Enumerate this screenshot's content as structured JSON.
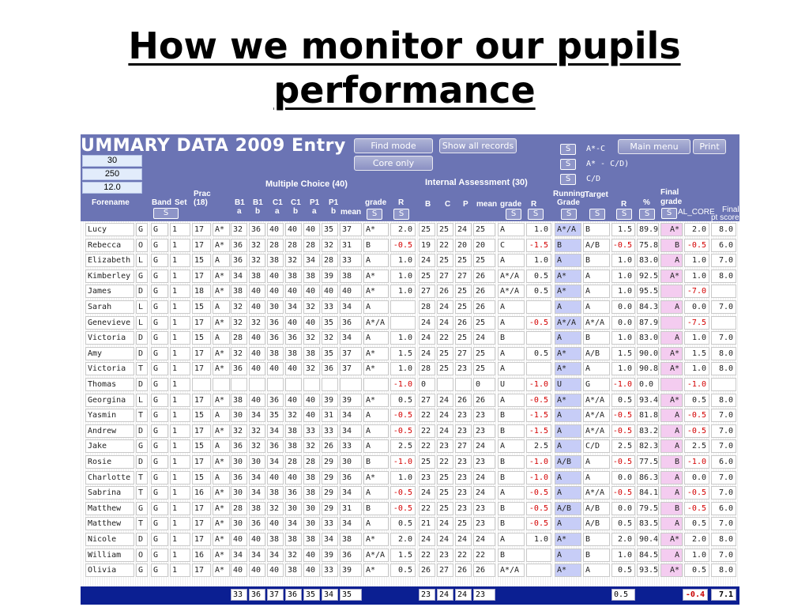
{
  "slide": {
    "title_line1": "How we monitor our pupils",
    "title_line2": "performance"
  },
  "app": {
    "title": "UMMARY DATA 2009 Entry",
    "buttons": {
      "find_mode": "Find mode",
      "show_all": "Show all records",
      "core_only": "Core only",
      "main_menu": "Main menu",
      "print": "Print"
    },
    "s_label": "S",
    "legend": [
      "A*-C",
      "A* - C/D)",
      "C/D"
    ],
    "params": [
      "30",
      "250",
      "12.0"
    ],
    "headers": {
      "forename": "Forename",
      "band": "Band",
      "set": "Set",
      "prac": "Prac",
      "prac18": "(18)",
      "mc_group": "Multiple Choice (40)",
      "b1a": [
        "B1",
        "a"
      ],
      "b1b": [
        "B1",
        "b"
      ],
      "c1a": [
        "C1",
        "a"
      ],
      "c1b": [
        "C1",
        "b"
      ],
      "p1a": [
        "P1",
        "a"
      ],
      "p1b": [
        "P1",
        "b"
      ],
      "mean": "mean",
      "grade": "grade",
      "r": "R",
      "ia_group": "Internal Assessment (30)",
      "b": "B",
      "c": "C",
      "p": "P",
      "ia_mean": "mean",
      "ia_grade": "grade",
      "ia_r": "R",
      "running": "Running",
      "running_grade": "Grade",
      "target": "Target",
      "r2": "R",
      "pct": "%",
      "final": "Final",
      "final_grade": "grade",
      "fal_core": "AL_CORE",
      "final_pt": "Final",
      "final_pt2": "pt score"
    },
    "rows": [
      {
        "name": "Lucy",
        "band": "G",
        "set": "G",
        "s2": "1",
        "prac": "17",
        "pg": "A*",
        "mc": [
          "32",
          "36",
          "40",
          "40",
          "40",
          "35"
        ],
        "mean": "37",
        "grade": "A*",
        "r": "2.0",
        "ia": [
          "25",
          "25",
          "24"
        ],
        "iam": "25",
        "iag": "A",
        "iar": "1.0",
        "run": "A*/A",
        "tgt": "B",
        "r2": "1.5",
        "pct": "89.9",
        "fg": "A*",
        "core": "2.0",
        "pt": "8.0"
      },
      {
        "name": "Rebecca",
        "band": "O",
        "set": "G",
        "s2": "1",
        "prac": "17",
        "pg": "A*",
        "mc": [
          "36",
          "32",
          "28",
          "28",
          "28",
          "32"
        ],
        "mean": "31",
        "grade": "B",
        "r": "-0.5",
        "ia": [
          "19",
          "22",
          "20"
        ],
        "iam": "20",
        "iag": "C",
        "iar": "-1.5",
        "run": "B",
        "tgt": "A/B",
        "r2": "-0.5",
        "pct": "75.8",
        "fg": "B",
        "core": "-0.5",
        "pt": "6.0"
      },
      {
        "name": "Elizabeth",
        "band": "L",
        "set": "G",
        "s2": "1",
        "prac": "15",
        "pg": "A",
        "mc": [
          "36",
          "32",
          "38",
          "32",
          "34",
          "28"
        ],
        "mean": "33",
        "grade": "A",
        "r": "1.0",
        "ia": [
          "24",
          "25",
          "25"
        ],
        "iam": "25",
        "iag": "A",
        "iar": "1.0",
        "run": "A",
        "tgt": "B",
        "r2": "1.0",
        "pct": "83.0",
        "fg": "A",
        "core": "1.0",
        "pt": "7.0"
      },
      {
        "name": "Kimberley",
        "band": "G",
        "set": "G",
        "s2": "1",
        "prac": "17",
        "pg": "A*",
        "mc": [
          "34",
          "38",
          "40",
          "38",
          "38",
          "39"
        ],
        "mean": "38",
        "grade": "A*",
        "r": "1.0",
        "ia": [
          "25",
          "27",
          "27"
        ],
        "iam": "26",
        "iag": "A*/A",
        "iar": "0.5",
        "run": "A*",
        "tgt": "A",
        "r2": "1.0",
        "pct": "92.5",
        "fg": "A*",
        "core": "1.0",
        "pt": "8.0"
      },
      {
        "name": "James",
        "band": "D",
        "set": "G",
        "s2": "1",
        "prac": "18",
        "pg": "A*",
        "mc": [
          "38",
          "40",
          "40",
          "40",
          "40",
          "40"
        ],
        "mean": "40",
        "grade": "A*",
        "r": "1.0",
        "ia": [
          "27",
          "26",
          "25"
        ],
        "iam": "26",
        "iag": "A*/A",
        "iar": "0.5",
        "run": "A*",
        "tgt": "A",
        "r2": "1.0",
        "pct": "95.5",
        "fg": "",
        "core": "-7.0",
        "pt": ""
      },
      {
        "name": "Sarah",
        "band": "L",
        "set": "G",
        "s2": "1",
        "prac": "15",
        "pg": "A",
        "mc": [
          "32",
          "40",
          "30",
          "34",
          "32",
          "33"
        ],
        "mean": "34",
        "grade": "A",
        "r": "",
        "ia": [
          "28",
          "24",
          "25"
        ],
        "iam": "26",
        "iag": "A",
        "iar": "",
        "run": "A",
        "tgt": "A",
        "r2": "0.0",
        "pct": "84.3",
        "fg": "A",
        "core": "0.0",
        "pt": "7.0"
      },
      {
        "name": "Genevieve",
        "band": "L",
        "set": "G",
        "s2": "1",
        "prac": "17",
        "pg": "A*",
        "mc": [
          "32",
          "32",
          "36",
          "40",
          "40",
          "35"
        ],
        "mean": "36",
        "grade": "A*/A",
        "r": "",
        "ia": [
          "24",
          "24",
          "26"
        ],
        "iam": "25",
        "iag": "A",
        "iar": "-0.5",
        "run": "A*/A",
        "tgt": "A*/A",
        "r2": "0.0",
        "pct": "87.9",
        "fg": "",
        "core": "-7.5",
        "pt": ""
      },
      {
        "name": "Victoria",
        "band": "D",
        "set": "G",
        "s2": "1",
        "prac": "15",
        "pg": "A",
        "mc": [
          "28",
          "40",
          "36",
          "36",
          "32",
          "32"
        ],
        "mean": "34",
        "grade": "A",
        "r": "1.0",
        "ia": [
          "24",
          "22",
          "25"
        ],
        "iam": "24",
        "iag": "B",
        "iar": "",
        "run": "A",
        "tgt": "B",
        "r2": "1.0",
        "pct": "83.0",
        "fg": "A",
        "core": "1.0",
        "pt": "7.0"
      },
      {
        "name": "Amy",
        "band": "D",
        "set": "G",
        "s2": "1",
        "prac": "17",
        "pg": "A*",
        "mc": [
          "32",
          "40",
          "38",
          "38",
          "38",
          "35"
        ],
        "mean": "37",
        "grade": "A*",
        "r": "1.5",
        "ia": [
          "24",
          "25",
          "27"
        ],
        "iam": "25",
        "iag": "A",
        "iar": "0.5",
        "run": "A*",
        "tgt": "A/B",
        "r2": "1.5",
        "pct": "90.0",
        "fg": "A*",
        "core": "1.5",
        "pt": "8.0"
      },
      {
        "name": "Victoria",
        "band": "T",
        "set": "G",
        "s2": "1",
        "prac": "17",
        "pg": "A*",
        "mc": [
          "36",
          "40",
          "40",
          "40",
          "32",
          "36"
        ],
        "mean": "37",
        "grade": "A*",
        "r": "1.0",
        "ia": [
          "28",
          "25",
          "23"
        ],
        "iam": "25",
        "iag": "A",
        "iar": "",
        "run": "A*",
        "tgt": "A",
        "r2": "1.0",
        "pct": "90.8",
        "fg": "A*",
        "core": "1.0",
        "pt": "8.0"
      },
      {
        "name": "Thomas",
        "band": "D",
        "set": "G",
        "s2": "1",
        "prac": "",
        "pg": "",
        "mc": [
          "",
          "",
          "",
          "",
          "",
          ""
        ],
        "mean": "",
        "grade": "",
        "r": "-1.0",
        "ia": [
          "0",
          "",
          ""
        ],
        "iam": "0",
        "iag": "U",
        "iar": "-1.0",
        "run": "U",
        "tgt": "G",
        "r2": "-1.0",
        "pct": "0.0",
        "fg": "",
        "core": "-1.0",
        "pt": ""
      },
      {
        "name": "Georgina",
        "band": "L",
        "set": "G",
        "s2": "1",
        "prac": "17",
        "pg": "A*",
        "mc": [
          "38",
          "40",
          "36",
          "40",
          "40",
          "39"
        ],
        "mean": "39",
        "grade": "A*",
        "r": "0.5",
        "ia": [
          "27",
          "24",
          "26"
        ],
        "iam": "26",
        "iag": "A",
        "iar": "-0.5",
        "run": "A*",
        "tgt": "A*/A",
        "r2": "0.5",
        "pct": "93.4",
        "fg": "A*",
        "core": "0.5",
        "pt": "8.0"
      },
      {
        "name": "Yasmin",
        "band": "T",
        "set": "G",
        "s2": "1",
        "prac": "15",
        "pg": "A",
        "mc": [
          "30",
          "34",
          "35",
          "32",
          "40",
          "31"
        ],
        "mean": "34",
        "grade": "A",
        "r": "-0.5",
        "ia": [
          "22",
          "24",
          "23"
        ],
        "iam": "23",
        "iag": "B",
        "iar": "-1.5",
        "run": "A",
        "tgt": "A*/A",
        "r2": "-0.5",
        "pct": "81.8",
        "fg": "A",
        "core": "-0.5",
        "pt": "7.0"
      },
      {
        "name": "Andrew",
        "band": "D",
        "set": "G",
        "s2": "1",
        "prac": "17",
        "pg": "A*",
        "mc": [
          "32",
          "32",
          "34",
          "38",
          "33",
          "33"
        ],
        "mean": "34",
        "grade": "A",
        "r": "-0.5",
        "ia": [
          "22",
          "24",
          "23"
        ],
        "iam": "23",
        "iag": "B",
        "iar": "-1.5",
        "run": "A",
        "tgt": "A*/A",
        "r2": "-0.5",
        "pct": "83.2",
        "fg": "A",
        "core": "-0.5",
        "pt": "7.0"
      },
      {
        "name": "Jake",
        "band": "G",
        "set": "G",
        "s2": "1",
        "prac": "15",
        "pg": "A",
        "mc": [
          "36",
          "32",
          "36",
          "38",
          "32",
          "26"
        ],
        "mean": "33",
        "grade": "A",
        "r": "2.5",
        "ia": [
          "22",
          "23",
          "27"
        ],
        "iam": "24",
        "iag": "A",
        "iar": "2.5",
        "run": "A",
        "tgt": "C/D",
        "r2": "2.5",
        "pct": "82.3",
        "fg": "A",
        "core": "2.5",
        "pt": "7.0"
      },
      {
        "name": "Rosie",
        "band": "D",
        "set": "G",
        "s2": "1",
        "prac": "17",
        "pg": "A*",
        "mc": [
          "30",
          "30",
          "34",
          "28",
          "28",
          "29"
        ],
        "mean": "30",
        "grade": "B",
        "r": "-1.0",
        "ia": [
          "25",
          "22",
          "23"
        ],
        "iam": "23",
        "iag": "B",
        "iar": "-1.0",
        "run": "A/B",
        "tgt": "A",
        "r2": "-0.5",
        "pct": "77.5",
        "fg": "B",
        "core": "-1.0",
        "pt": "6.0"
      },
      {
        "name": "Charlotte",
        "band": "T",
        "set": "G",
        "s2": "1",
        "prac": "15",
        "pg": "A",
        "mc": [
          "36",
          "34",
          "40",
          "40",
          "38",
          "29"
        ],
        "mean": "36",
        "grade": "A*",
        "r": "1.0",
        "ia": [
          "23",
          "25",
          "23"
        ],
        "iam": "24",
        "iag": "B",
        "iar": "-1.0",
        "run": "A",
        "tgt": "A",
        "r2": "0.0",
        "pct": "86.3",
        "fg": "A",
        "core": "0.0",
        "pt": "7.0"
      },
      {
        "name": "Sabrina",
        "band": "T",
        "set": "G",
        "s2": "1",
        "prac": "16",
        "pg": "A*",
        "mc": [
          "30",
          "34",
          "38",
          "36",
          "38",
          "29"
        ],
        "mean": "34",
        "grade": "A",
        "r": "-0.5",
        "ia": [
          "24",
          "25",
          "23"
        ],
        "iam": "24",
        "iag": "A",
        "iar": "-0.5",
        "run": "A",
        "tgt": "A*/A",
        "r2": "-0.5",
        "pct": "84.1",
        "fg": "A",
        "core": "-0.5",
        "pt": "7.0"
      },
      {
        "name": "Matthew",
        "band": "G",
        "set": "G",
        "s2": "1",
        "prac": "17",
        "pg": "A*",
        "mc": [
          "28",
          "38",
          "32",
          "30",
          "30",
          "29"
        ],
        "mean": "31",
        "grade": "B",
        "r": "-0.5",
        "ia": [
          "22",
          "25",
          "23"
        ],
        "iam": "23",
        "iag": "B",
        "iar": "-0.5",
        "run": "A/B",
        "tgt": "A/B",
        "r2": "0.0",
        "pct": "79.5",
        "fg": "B",
        "core": "-0.5",
        "pt": "6.0"
      },
      {
        "name": "Matthew",
        "band": "T",
        "set": "G",
        "s2": "1",
        "prac": "17",
        "pg": "A*",
        "mc": [
          "30",
          "36",
          "40",
          "34",
          "30",
          "33"
        ],
        "mean": "34",
        "grade": "A",
        "r": "0.5",
        "ia": [
          "21",
          "24",
          "25"
        ],
        "iam": "23",
        "iag": "B",
        "iar": "-0.5",
        "run": "A",
        "tgt": "A/B",
        "r2": "0.5",
        "pct": "83.5",
        "fg": "A",
        "core": "0.5",
        "pt": "7.0"
      },
      {
        "name": "Nicole",
        "band": "D",
        "set": "G",
        "s2": "1",
        "prac": "17",
        "pg": "A*",
        "mc": [
          "40",
          "40",
          "38",
          "38",
          "38",
          "34"
        ],
        "mean": "38",
        "grade": "A*",
        "r": "2.0",
        "ia": [
          "24",
          "24",
          "24"
        ],
        "iam": "24",
        "iag": "A",
        "iar": "1.0",
        "run": "A*",
        "tgt": "B",
        "r2": "2.0",
        "pct": "90.4",
        "fg": "A*",
        "core": "2.0",
        "pt": "8.0"
      },
      {
        "name": "William",
        "band": "O",
        "set": "G",
        "s2": "1",
        "prac": "16",
        "pg": "A*",
        "mc": [
          "34",
          "34",
          "34",
          "32",
          "40",
          "39"
        ],
        "mean": "36",
        "grade": "A*/A",
        "r": "1.5",
        "ia": [
          "22",
          "23",
          "22"
        ],
        "iam": "22",
        "iag": "B",
        "iar": "",
        "run": "A",
        "tgt": "B",
        "r2": "1.0",
        "pct": "84.5",
        "fg": "A",
        "core": "1.0",
        "pt": "7.0"
      },
      {
        "name": "Olivia",
        "band": "G",
        "set": "G",
        "s2": "1",
        "prac": "17",
        "pg": "A*",
        "mc": [
          "40",
          "40",
          "40",
          "38",
          "40",
          "33"
        ],
        "mean": "39",
        "grade": "A*",
        "r": "0.5",
        "ia": [
          "26",
          "27",
          "26"
        ],
        "iam": "26",
        "iag": "A*/A",
        "iar": "",
        "run": "A*",
        "tgt": "A",
        "r2": "0.5",
        "pct": "93.5",
        "fg": "A*",
        "core": "0.5",
        "pt": "8.0"
      }
    ],
    "footer": {
      "mc": [
        "33",
        "36",
        "37",
        "36",
        "35",
        "34"
      ],
      "mean": "35",
      "ia": [
        "23",
        "24",
        "24"
      ],
      "iam": "23",
      "r2": "0.5",
      "core": "-0.4",
      "pt": "7.1"
    }
  }
}
